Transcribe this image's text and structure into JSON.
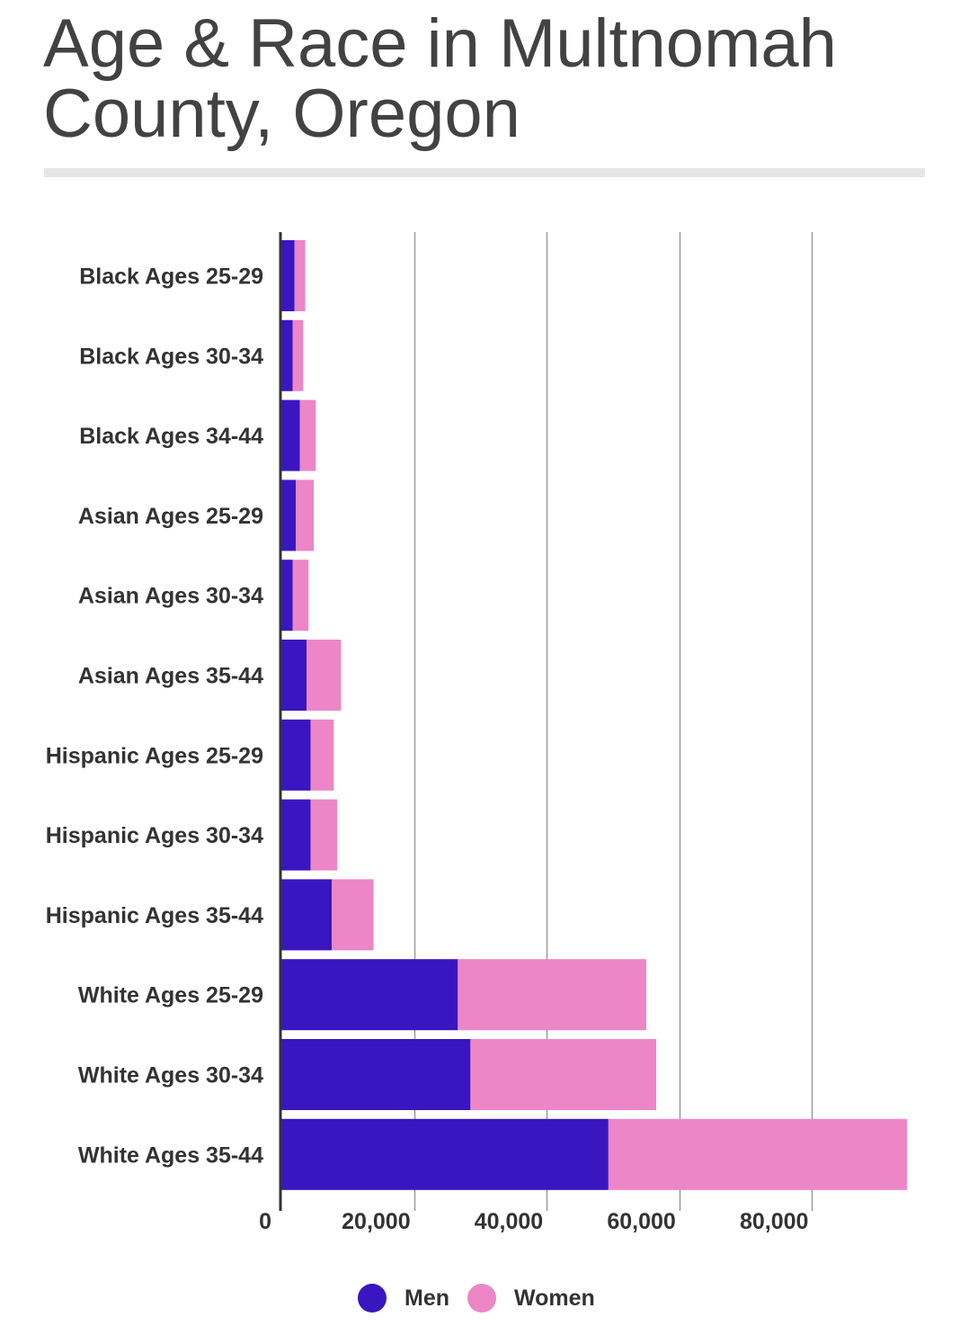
{
  "chart_data": {
    "type": "bar",
    "orientation": "horizontal",
    "stacked": true,
    "title": "Age & Race in Multnomah County, Oregon",
    "categories": [
      "Black Ages 25-29",
      "Black Ages 30-34",
      "Black Ages 34-44",
      "Asian Ages 25-29",
      "Asian Ages 30-34",
      "Asian Ages 35-44",
      "Hispanic Ages 25-29",
      "Hispanic Ages 30-34",
      "Hispanic Ages 35-44",
      "White Ages 25-29",
      "White Ages 30-34",
      "White Ages 35-44"
    ],
    "series": [
      {
        "name": "Men",
        "color": "#3a16c0",
        "values": [
          2000,
          1700,
          2800,
          2200,
          1700,
          3800,
          4400,
          4400,
          7600,
          26600,
          28500,
          49300
        ]
      },
      {
        "name": "Women",
        "color": "#ec86c6",
        "values": [
          1600,
          1600,
          2400,
          2700,
          2400,
          5200,
          3500,
          4000,
          6300,
          28400,
          28000,
          45000
        ]
      }
    ],
    "xlim": [
      0,
      94300
    ],
    "xticks": [
      0,
      20000,
      40000,
      60000,
      80000
    ],
    "xtick_labels": [
      "0",
      "20,000",
      "40,000",
      "60,000",
      "80,000"
    ],
    "grid": true,
    "legend": "bottom"
  }
}
